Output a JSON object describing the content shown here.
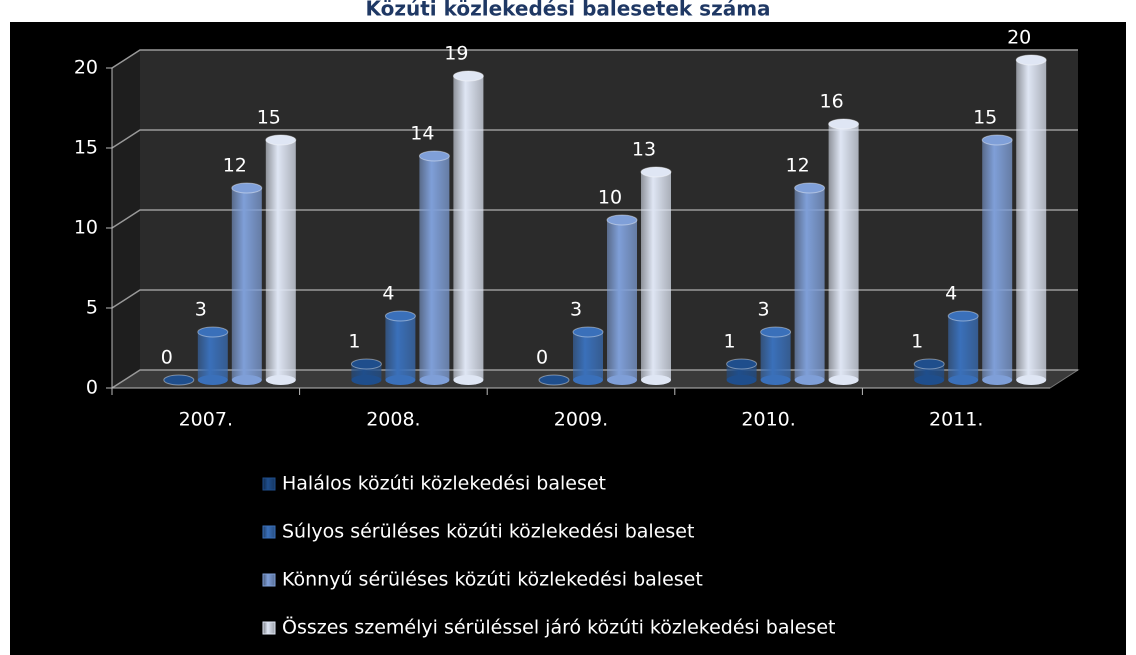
{
  "chart_data": {
    "type": "bar3d",
    "title": "Közúti közlekedési balesetek száma",
    "categories": [
      "2007.",
      "2008.",
      "2009.",
      "2010.",
      "2011."
    ],
    "series": [
      {
        "name": "Halálos közúti közlekedési baleset",
        "color": "#1f4e8c",
        "values": [
          0,
          1,
          0,
          1,
          1
        ]
      },
      {
        "name": "Súlyos sérüléses közúti közlekedési baleset",
        "color": "#3a70ba",
        "values": [
          3,
          4,
          3,
          3,
          4
        ]
      },
      {
        "name": "Könnyű sérüléses közúti közlekedési baleset",
        "color": "#7f9fd8",
        "values": [
          12,
          14,
          10,
          12,
          15
        ]
      },
      {
        "name": "Összes személyi sérüléssel járó közúti közlekedési baleset",
        "color": "#dfe6f4",
        "values": [
          15,
          19,
          13,
          16,
          20
        ]
      }
    ],
    "ylim": [
      0,
      20
    ],
    "yticks": [
      0,
      5,
      10,
      15,
      20
    ],
    "grid": true,
    "legend": "bottom"
  }
}
